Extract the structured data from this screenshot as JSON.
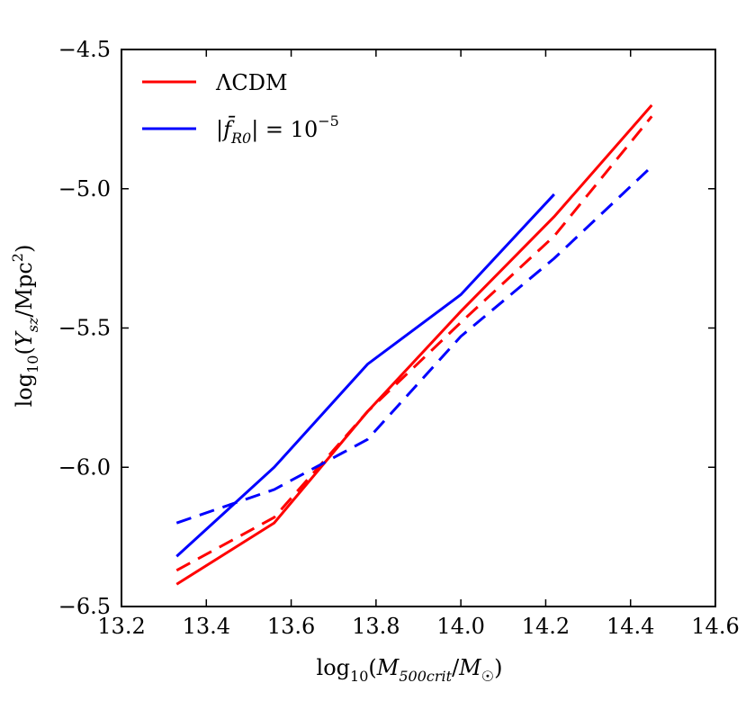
{
  "chart_data": {
    "type": "line",
    "title": "",
    "xlabel": "log10(M500crit/M☉)",
    "ylabel": "log10(Ysz/Mpc²)",
    "xlabel_parts": {
      "base": "log",
      "sub": "10",
      "open": "(",
      "var": "M",
      "var_sub": "500crit",
      "slash": "/",
      "var2": "M",
      "var2_sub": "☉",
      "close": ")"
    },
    "ylabel_parts": {
      "base": "log",
      "sub": "10",
      "open": "(",
      "var": "Y",
      "var_sub": "sz",
      "slash": "/Mpc",
      "sup": "2",
      "close": ")"
    },
    "xlim": [
      13.2,
      14.6
    ],
    "ylim": [
      -6.5,
      -4.5
    ],
    "xticks": [
      13.2,
      13.4,
      13.6,
      13.8,
      14.0,
      14.2,
      14.4,
      14.6
    ],
    "yticks": [
      -6.5,
      -6.0,
      -5.5,
      -5.0,
      -4.5
    ],
    "xtick_labels": [
      "13.2",
      "13.4",
      "13.6",
      "13.8",
      "14.0",
      "14.2",
      "14.4",
      "14.6"
    ],
    "ytick_labels": [
      "−6.5",
      "−6.0",
      "−5.5",
      "−5.0",
      "−4.5"
    ],
    "legend": [
      {
        "label": "ΛCDM",
        "color": "#ff0000"
      },
      {
        "label_parts": {
          "open": "|",
          "var": "f̄",
          "sub": "R0",
          "close": "| = 10",
          "sup": "−5"
        },
        "color": "#0000ff"
      }
    ],
    "legend_position": "top-left",
    "series": [
      {
        "name": "ΛCDM solid",
        "color": "#ff0000",
        "dash": false,
        "x": [
          13.33,
          13.56,
          13.78,
          14.0,
          14.22,
          14.45
        ],
        "y": [
          -6.42,
          -6.2,
          -5.8,
          -5.44,
          -5.1,
          -4.7
        ]
      },
      {
        "name": "ΛCDM dashed",
        "color": "#ff0000",
        "dash": true,
        "x": [
          13.33,
          13.56,
          13.78,
          14.0,
          14.22,
          14.45
        ],
        "y": [
          -6.37,
          -6.18,
          -5.8,
          -5.48,
          -5.17,
          -4.74
        ]
      },
      {
        "name": "f(R) solid",
        "color": "#0000ff",
        "dash": false,
        "x": [
          13.33,
          13.56,
          13.78,
          14.0,
          14.22
        ],
        "y": [
          -6.32,
          -6.0,
          -5.63,
          -5.38,
          -5.02
        ]
      },
      {
        "name": "f(R) dashed",
        "color": "#0000ff",
        "dash": true,
        "x": [
          13.33,
          13.56,
          13.78,
          14.0,
          14.22,
          14.45
        ],
        "y": [
          -6.2,
          -6.08,
          -5.9,
          -5.53,
          -5.25,
          -4.92
        ]
      }
    ]
  }
}
